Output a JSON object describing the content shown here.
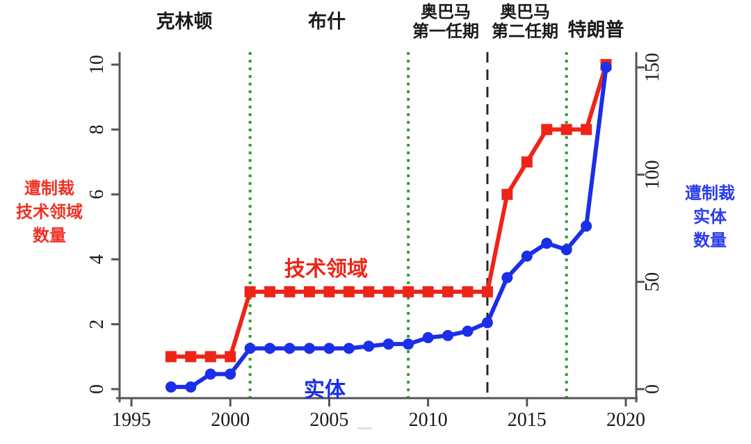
{
  "chart_data": {
    "type": "line",
    "x": [
      1997,
      1998,
      1999,
      2000,
      2001,
      2002,
      2003,
      2004,
      2005,
      2006,
      2007,
      2008,
      2009,
      2010,
      2011,
      2012,
      2013,
      2014,
      2015,
      2016,
      2017,
      2018,
      2019
    ],
    "series": [
      {
        "name": "技术领域",
        "axis": "left",
        "marker": "square",
        "color": "#ee2418",
        "values": [
          1,
          1,
          1,
          1,
          3,
          3,
          3,
          3,
          3,
          3,
          3,
          3,
          3,
          3,
          3,
          3,
          3,
          6,
          7,
          8,
          8,
          8,
          10
        ]
      },
      {
        "name": "实体",
        "axis": "right",
        "marker": "circle",
        "color": "#1b2ee8",
        "values": [
          1,
          1,
          7,
          7,
          19,
          19,
          19,
          19,
          19,
          19,
          20,
          21,
          21,
          24,
          25,
          27,
          31,
          52,
          62,
          68,
          65,
          76,
          150
        ]
      }
    ],
    "x_ticks": [
      1995,
      2000,
      2005,
      2010,
      2015,
      2020
    ],
    "left_ticks": [
      0,
      2,
      4,
      6,
      8,
      10
    ],
    "right_ticks": [
      0,
      50,
      100,
      150
    ],
    "left_ylim": [
      0,
      10
    ],
    "right_ylim": [
      0,
      150
    ],
    "xlim": [
      1994.4,
      2020.6
    ],
    "left_ylabel": "遭制裁技术领域数量",
    "right_ylabel": "遭制裁实体数量",
    "grid": "off",
    "legend_position": "in-plot-text-labels",
    "era_lines": [
      {
        "year": 2001,
        "style": "dotted",
        "color": "#33a02c"
      },
      {
        "year": 2009,
        "style": "dotted",
        "color": "#33a02c"
      },
      {
        "year": 2013,
        "style": "dashed",
        "color": "#262626"
      },
      {
        "year": 2017,
        "style": "dotted",
        "color": "#33a02c"
      }
    ]
  },
  "presidents": [
    {
      "line1": "克林顿",
      "line2": ""
    },
    {
      "line1": "布什",
      "line2": ""
    },
    {
      "line1": "奥巴马",
      "line2": "第一任期"
    },
    {
      "line1": "奥巴马",
      "line2": "第二任期"
    },
    {
      "line1": "特朗普",
      "line2": ""
    }
  ],
  "left_axis_title": {
    "line1": "遭制裁",
    "line2": "技术领域",
    "line3": "数量"
  },
  "right_axis_title": {
    "line1": "遭制裁",
    "line2": "实体",
    "line3": "数量"
  },
  "series_labels": {
    "tech": "技术领域",
    "entity": "实体"
  },
  "colors": {
    "tech_line": "#ee2418",
    "entity_line": "#1b2ee8",
    "era_dotted": "#33a02c",
    "era_dashed": "#262626",
    "axis": "#555555",
    "tick_text": "#1a1a1a"
  }
}
